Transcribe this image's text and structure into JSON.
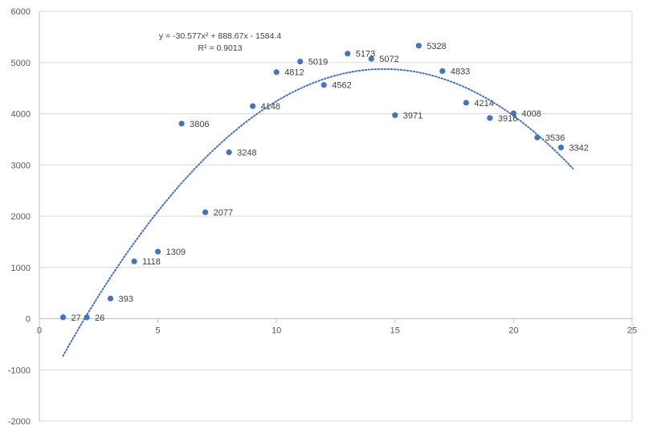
{
  "chart_data": {
    "type": "scatter",
    "title": "",
    "xlabel": "",
    "ylabel": "",
    "xlim": [
      0,
      25
    ],
    "ylim": [
      -2000,
      6000
    ],
    "x_ticks": [
      0,
      5,
      10,
      15,
      20,
      25
    ],
    "y_ticks": [
      -2000,
      -1000,
      0,
      1000,
      2000,
      3000,
      4000,
      5000,
      6000
    ],
    "grid": "horizontal",
    "legend": "none",
    "marker_color": "#4472C4",
    "trendline_color": "#4472C4",
    "series": [
      {
        "x": [
          1,
          2,
          3,
          4,
          5,
          6,
          7,
          8,
          9,
          10,
          11,
          12,
          13,
          14,
          15,
          16,
          17,
          18,
          19,
          20,
          21,
          22
        ],
        "y": [
          27,
          26,
          393,
          1118,
          1309,
          3806,
          2077,
          3248,
          4148,
          4812,
          5019,
          4562,
          5173,
          5072,
          3971,
          5328,
          4833,
          4214,
          3916,
          4008,
          3536,
          3342
        ],
        "labels": [
          "27",
          "26",
          "393",
          "1118",
          "1309",
          "3806",
          "2077",
          "3248",
          "4148",
          "4812",
          "5019",
          "4562",
          "5173",
          "5072",
          "3971",
          "5328",
          "4833",
          "4214",
          "3916",
          "4008",
          "3536",
          "3342"
        ]
      }
    ],
    "trendline": {
      "type": "polynomial",
      "order": 2,
      "coefficients": [
        -30.577,
        888.67,
        -1584.4
      ],
      "x_range": [
        1,
        22.5
      ],
      "equation": "y = -30.577x² + 888.67x - 1584.4",
      "r_squared": "R² = 0.9013"
    }
  }
}
